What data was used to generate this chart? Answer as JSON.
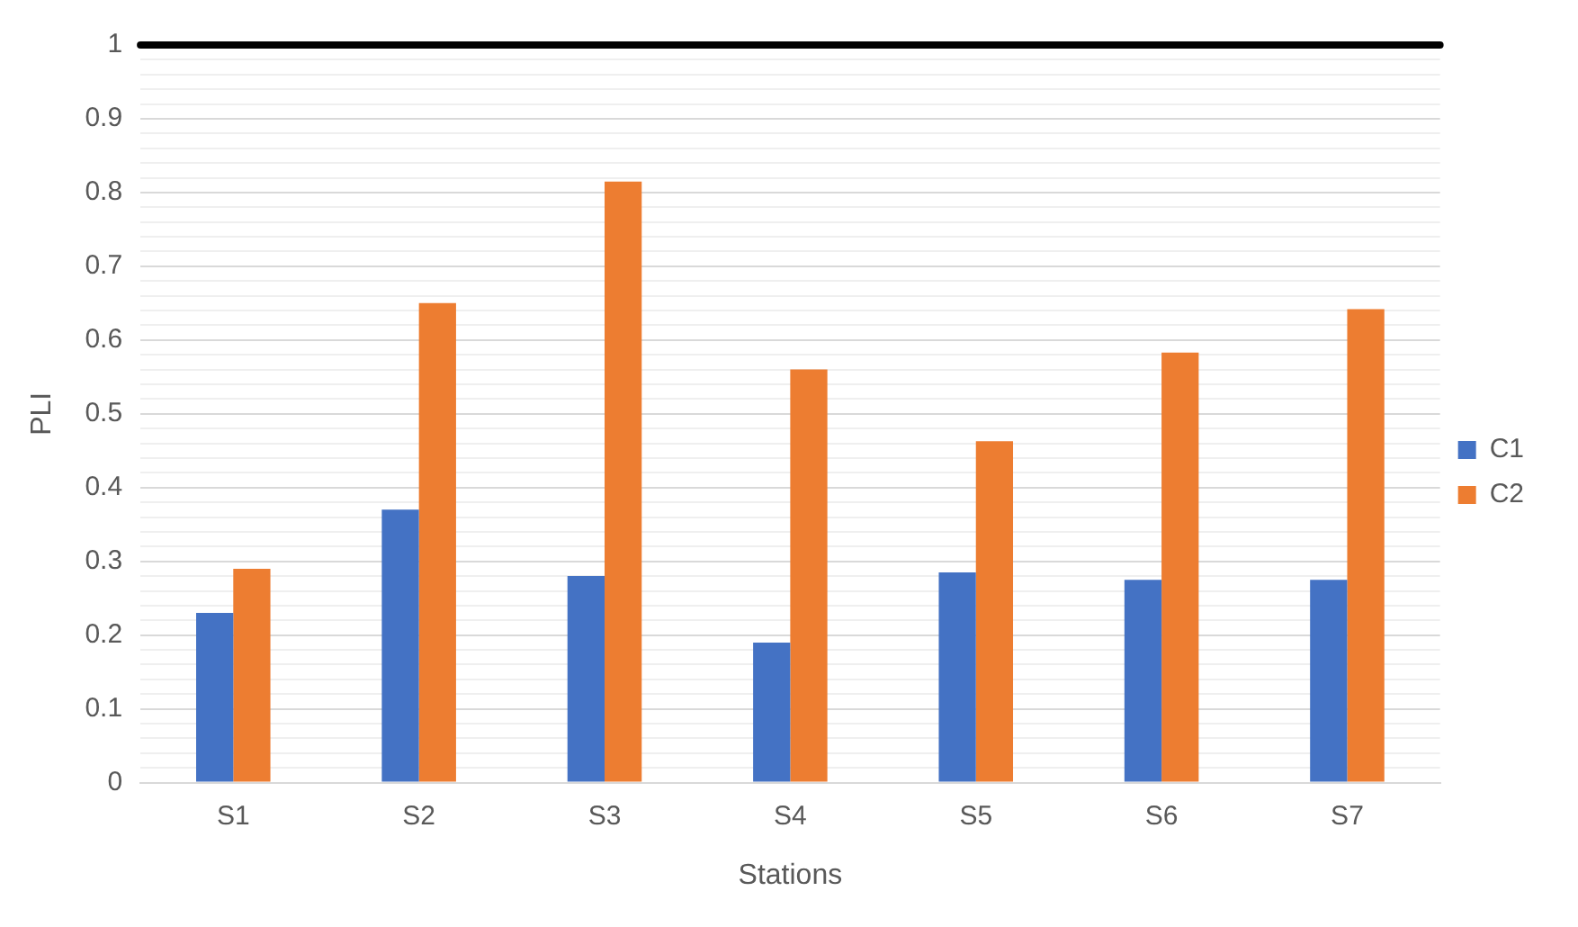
{
  "chart_data": {
    "type": "bar",
    "xlabel": "Stations",
    "ylabel": "PLI",
    "categories": [
      "S1",
      "S2",
      "S3",
      "S4",
      "S5",
      "S6",
      "S7"
    ],
    "series": [
      {
        "name": "C1",
        "color": "#4472c4",
        "values": [
          0.23,
          0.37,
          0.28,
          0.19,
          0.285,
          0.275,
          0.275
        ]
      },
      {
        "name": "C2",
        "color": "#ed7d31",
        "values": [
          0.29,
          0.65,
          0.815,
          0.56,
          0.463,
          0.583,
          0.642
        ]
      }
    ],
    "ylim": [
      0,
      1
    ],
    "yticks": [
      0,
      {
        "value": 0.02,
        "label": null
      },
      {
        "value": 0.04,
        "label": null
      },
      {
        "value": 0.06,
        "label": null
      },
      {
        "value": 0.08,
        "label": null
      },
      0.1,
      {
        "value": 0.12,
        "label": null
      },
      {
        "value": 0.14,
        "label": null
      },
      {
        "value": 0.16,
        "label": null
      },
      {
        "value": 0.18,
        "label": null
      },
      0.2,
      {
        "value": 0.22,
        "label": null
      },
      {
        "value": 0.24,
        "label": null
      },
      {
        "value": 0.26,
        "label": null
      },
      {
        "value": 0.28,
        "label": null
      },
      0.3,
      {
        "value": 0.32,
        "label": null
      },
      {
        "value": 0.34,
        "label": null
      },
      {
        "value": 0.36,
        "label": null
      },
      {
        "value": 0.38,
        "label": null
      },
      0.4,
      {
        "value": 0.42,
        "label": null
      },
      {
        "value": 0.44,
        "label": null
      },
      {
        "value": 0.46,
        "label": null
      },
      {
        "value": 0.48,
        "label": null
      },
      0.5,
      {
        "value": 0.52,
        "label": null
      },
      {
        "value": 0.54,
        "label": null
      },
      {
        "value": 0.56,
        "label": null
      },
      {
        "value": 0.58,
        "label": null
      },
      0.6,
      {
        "value": 0.62,
        "label": null
      },
      {
        "value": 0.64,
        "label": null
      },
      {
        "value": 0.66,
        "label": null
      },
      {
        "value": 0.68,
        "label": null
      },
      0.7,
      {
        "value": 0.72,
        "label": null
      },
      {
        "value": 0.74,
        "label": null
      },
      {
        "value": 0.76,
        "label": null
      },
      {
        "value": 0.78,
        "label": null
      },
      0.8,
      {
        "value": 0.82,
        "label": null
      },
      {
        "value": 0.84,
        "label": null
      },
      {
        "value": 0.86,
        "label": null
      },
      {
        "value": 0.88,
        "label": null
      },
      0.9,
      {
        "value": 0.92,
        "label": null
      },
      {
        "value": 0.94,
        "label": null
      },
      {
        "value": 0.96,
        "label": null
      },
      {
        "value": 0.98,
        "label": null
      },
      1
    ],
    "grid": "y",
    "legend": "right",
    "ref_lines": [
      {
        "axis": "y",
        "value": 1,
        "color": "#000000"
      }
    ]
  }
}
